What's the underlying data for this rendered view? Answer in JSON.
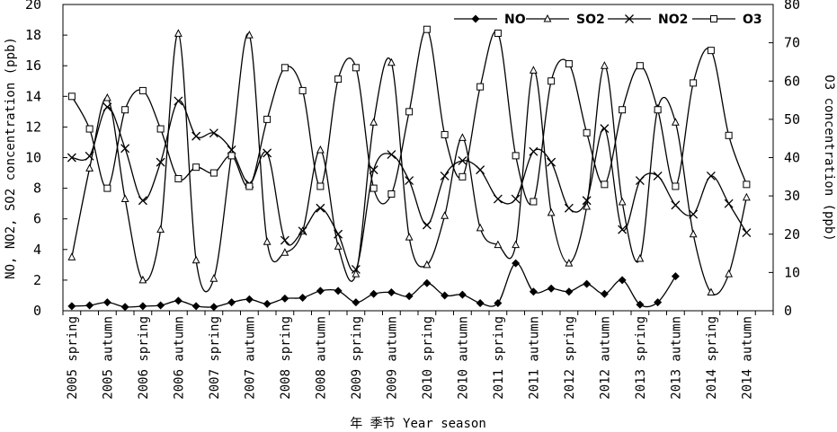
{
  "chart_data": {
    "type": "line",
    "title": "",
    "xlabel": "年 季节 Year season",
    "ylabel_left": "NO, NO2, SO2 concentration (ppb)",
    "ylabel_right": "O3 concentration (ppb)",
    "ylim_left": [
      0,
      20
    ],
    "ylim_right": [
      0,
      80
    ],
    "left_ticks": [
      "0",
      "2",
      "4",
      "6",
      "8",
      "10",
      "12",
      "14",
      "16",
      "18",
      "20"
    ],
    "right_ticks": [
      "0",
      "10",
      "20",
      "30",
      "40",
      "50",
      "60",
      "70",
      "80"
    ],
    "x_tick_labels": [
      "2005 spring",
      "2005 autumn",
      "2006 spring",
      "2006 autumn",
      "2007 spring",
      "2007 autumn",
      "2008 spring",
      "2008 autumn",
      "2009 spring",
      "2009 autumn",
      "2010 spring",
      "2010 autumn",
      "2011 spring",
      "2011 autumn",
      "2012 spring",
      "2012 autumn",
      "2013 spring",
      "2013 autumn",
      "2014 spring",
      "2014 autumn"
    ],
    "x_count": 40,
    "legend_position": "top-right",
    "series": [
      {
        "name": "NO",
        "marker": "diamond",
        "axis": "left",
        "values": [
          0.3,
          0.35,
          0.55,
          0.25,
          0.3,
          0.35,
          0.65,
          0.3,
          0.25,
          0.55,
          0.75,
          0.45,
          0.8,
          0.85,
          1.3,
          1.3,
          0.55,
          1.1,
          1.2,
          0.95,
          1.8,
          1.0,
          1.05,
          0.5,
          0.5,
          3.1,
          1.25,
          1.45,
          1.25,
          1.75,
          1.1,
          2.0,
          0.4,
          0.55,
          2.25,
          null,
          null,
          null,
          null,
          null
        ]
      },
      {
        "name": "SO2",
        "marker": "triangle",
        "axis": "left",
        "values": [
          3.5,
          9.3,
          13.9,
          7.3,
          2.0,
          5.3,
          18.1,
          3.3,
          2.1,
          10.3,
          18.0,
          4.5,
          3.8,
          5.2,
          10.5,
          4.2,
          2.4,
          12.3,
          16.2,
          4.8,
          3.0,
          6.2,
          11.3,
          5.4,
          4.3,
          4.3,
          15.7,
          6.4,
          3.1,
          6.8,
          16.0,
          7.1,
          3.4,
          13.2,
          12.3,
          5.0,
          1.2,
          2.4,
          7.4,
          null
        ]
      },
      {
        "name": "NO2",
        "marker": "x",
        "axis": "left",
        "values": [
          10.0,
          10.1,
          13.3,
          10.6,
          7.2,
          9.7,
          13.7,
          11.4,
          11.6,
          10.5,
          8.3,
          10.3,
          4.6,
          5.2,
          6.7,
          5.0,
          2.7,
          9.2,
          10.2,
          8.5,
          5.6,
          8.8,
          9.8,
          9.2,
          7.3,
          7.3,
          10.4,
          9.7,
          6.7,
          7.2,
          11.9,
          5.3,
          8.5,
          8.8,
          6.9,
          6.3,
          8.8,
          7.0,
          5.1,
          null
        ]
      },
      {
        "name": "O3",
        "marker": "square",
        "axis": "right",
        "values": [
          56,
          47.5,
          32,
          52.5,
          57.5,
          47.5,
          34.5,
          37.5,
          36,
          40.5,
          32.5,
          50,
          63.5,
          57.5,
          32.5,
          60.5,
          63.5,
          32,
          30.5,
          52,
          73.5,
          46,
          35,
          58.5,
          72.5,
          40.5,
          28.5,
          60,
          64.5,
          46.5,
          33,
          52.5,
          64,
          52.5,
          32.5,
          59.5,
          68,
          45.8,
          33,
          null
        ]
      }
    ]
  }
}
